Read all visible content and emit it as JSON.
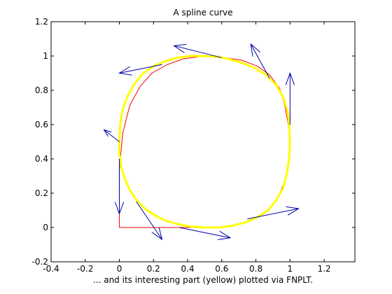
{
  "chart_data": {
    "type": "line",
    "title": "A spline curve",
    "xlabel": "... and its interesting part (yellow) plotted via FNPLT.",
    "ylabel": "",
    "xlim": [
      -0.4,
      1.38
    ],
    "ylim": [
      -0.2,
      1.2
    ],
    "grid": false,
    "legend": "none",
    "x_ticks": [
      -0.4,
      -0.2,
      0,
      0.2,
      0.4,
      0.6,
      0.8,
      1,
      1.2
    ],
    "x_tick_labels": [
      "-0.4",
      "-0.2",
      "0",
      "0.2",
      "0.4",
      "0.6",
      "0.8",
      "1",
      "1.2"
    ],
    "y_ticks": [
      -0.2,
      0,
      0.2,
      0.4,
      0.6,
      0.8,
      1,
      1.2
    ],
    "y_tick_labels": [
      "-0.2",
      "0",
      "0.2",
      "0.4",
      "0.6",
      "0.8",
      "1",
      "1.2"
    ],
    "series": [
      {
        "color": "#ff0000",
        "width": 1,
        "x": [
          0,
          0,
          0.02,
          0.06,
          0.12,
          0.19,
          0.28,
          0.38,
          0.5,
          0.62,
          0.72,
          0.81,
          0.88,
          0.94,
          0.97,
          0.99,
          1.0,
          0.99,
          0.97,
          0.93,
          0.88,
          0.81,
          0.72,
          0.62,
          0.5,
          0.4,
          0.3,
          0.2,
          0.1,
          0
        ],
        "y": [
          0,
          0.34,
          0.55,
          0.71,
          0.82,
          0.9,
          0.95,
          0.985,
          1.0,
          0.99,
          0.975,
          0.94,
          0.89,
          0.81,
          0.71,
          0.6,
          0.5,
          0.38,
          0.27,
          0.18,
          0.11,
          0.06,
          0.025,
          0.005,
          0,
          0,
          0,
          0,
          0,
          0
        ]
      },
      {
        "color": "#ffff00",
        "width": 3,
        "x": [
          0,
          0.005,
          0.02,
          0.05,
          0.09,
          0.14,
          0.2,
          0.27,
          0.34,
          0.42,
          0.5,
          0.58,
          0.65,
          0.72,
          0.79,
          0.86,
          0.92,
          0.96,
          0.985,
          0.995,
          1.0,
          0.995,
          0.98,
          0.96,
          0.92,
          0.87,
          0.81,
          0.74,
          0.66,
          0.58,
          0.5,
          0.42,
          0.34,
          0.27,
          0.21,
          0.15,
          0.1,
          0.06,
          0.03,
          0.01,
          0.0,
          0.0,
          0.0
        ],
        "y": [
          0.5,
          0.6,
          0.69,
          0.77,
          0.84,
          0.9,
          0.94,
          0.97,
          0.99,
          1.0,
          1.0,
          0.995,
          0.98,
          0.96,
          0.93,
          0.89,
          0.83,
          0.76,
          0.68,
          0.6,
          0.5,
          0.4,
          0.31,
          0.23,
          0.16,
          0.1,
          0.06,
          0.03,
          0.01,
          0.0,
          0.0,
          0.005,
          0.02,
          0.04,
          0.07,
          0.11,
          0.16,
          0.22,
          0.29,
          0.36,
          0.43,
          0.47,
          0.5
        ]
      }
    ],
    "vectors": {
      "color": "#0000aa",
      "items": [
        {
          "x": 0,
          "y": 0.5,
          "dx": -0.09,
          "dy": 0.07
        },
        {
          "x": 0.25,
          "y": 0.95,
          "dx": -0.25,
          "dy": -0.05
        },
        {
          "x": 0.6,
          "y": 0.99,
          "dx": -0.28,
          "dy": 0.07
        },
        {
          "x": 0.88,
          "y": 0.87,
          "dx": -0.11,
          "dy": 0.2
        },
        {
          "x": 1.0,
          "y": 0.6,
          "dx": 0.0,
          "dy": 0.3
        },
        {
          "x": 0.75,
          "y": 0.05,
          "dx": 0.3,
          "dy": 0.06
        },
        {
          "x": 0.35,
          "y": 0.0,
          "dx": 0.3,
          "dy": -0.06
        },
        {
          "x": 0.1,
          "y": 0.15,
          "dx": 0.15,
          "dy": -0.22
        },
        {
          "x": 0.0,
          "y": 0.4,
          "dx": 0.0,
          "dy": -0.32
        }
      ]
    }
  }
}
